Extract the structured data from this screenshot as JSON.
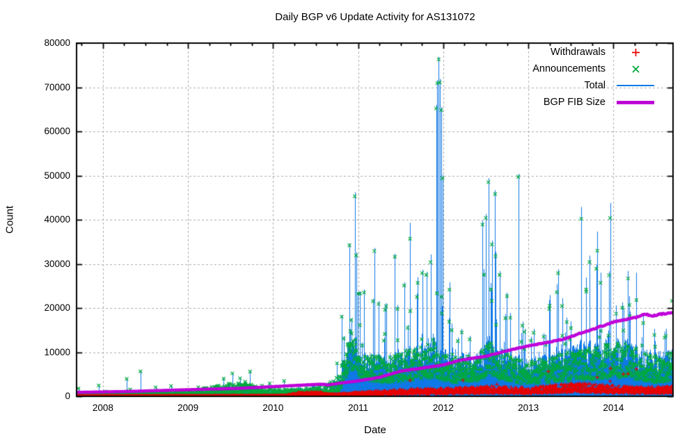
{
  "chart_data": {
    "type": "line",
    "title": "Daily BGP v6 Update Activity for AS131072",
    "xlabel": "Date",
    "ylabel": "Count",
    "xlim": [
      2007.69,
      2014.7
    ],
    "ylim": [
      0,
      80000
    ],
    "x_ticks": [
      2008,
      2009,
      2010,
      2011,
      2012,
      2013,
      2014
    ],
    "x_minor_step": 0.25,
    "y_ticks": [
      0,
      10000,
      20000,
      30000,
      40000,
      50000,
      60000,
      70000,
      80000
    ],
    "grid": true,
    "legend_position": "top-right-inside",
    "colors": {
      "grid": "#aaaaaa",
      "axis": "#000000",
      "background": "#ffffff",
      "text": "#000000"
    },
    "series": [
      {
        "name": "Withdrawals",
        "marker": "plus",
        "style": "points",
        "color": "#e60000",
        "band": [
          [
            2007.69,
            60,
            2.0
          ],
          [
            2009.3,
            80,
            2.0
          ],
          [
            2010.15,
            120,
            2.0
          ],
          [
            2010.3,
            520,
            1.8
          ],
          [
            2010.55,
            560,
            1.8
          ],
          [
            2010.7,
            290,
            1.8
          ],
          [
            2011.0,
            520,
            1.8
          ],
          [
            2011.5,
            900,
            1.8
          ],
          [
            2012.0,
            1050,
            1.8
          ],
          [
            2012.5,
            1300,
            1.8
          ],
          [
            2013.0,
            1100,
            1.8
          ],
          [
            2013.55,
            1700,
            1.8
          ],
          [
            2013.85,
            1500,
            1.8
          ],
          [
            2014.2,
            1250,
            1.8
          ],
          [
            2014.7,
            1250,
            1.8
          ]
        ]
      },
      {
        "name": "Announcements",
        "marker": "cross",
        "style": "points",
        "color": "#00a93e",
        "band": [
          [
            2007.69,
            350,
            2.2
          ],
          [
            2008.5,
            450,
            2.2
          ],
          [
            2009.0,
            520,
            2.2
          ],
          [
            2009.4,
            1100,
            2.4
          ],
          [
            2009.65,
            1500,
            2.4
          ],
          [
            2009.85,
            800,
            2.2
          ],
          [
            2010.2,
            700,
            2.2
          ],
          [
            2010.6,
            950,
            2.2
          ],
          [
            2010.78,
            2600,
            1.8
          ],
          [
            2010.88,
            8000,
            1.5
          ],
          [
            2010.96,
            9000,
            1.5
          ],
          [
            2011.05,
            6000,
            1.6
          ],
          [
            2011.3,
            5200,
            1.7
          ],
          [
            2011.6,
            6200,
            1.7
          ],
          [
            2011.9,
            7200,
            1.7
          ],
          [
            2012.1,
            5200,
            1.7
          ],
          [
            2012.35,
            5500,
            1.7
          ],
          [
            2012.55,
            7200,
            1.7
          ],
          [
            2012.75,
            5800,
            1.7
          ],
          [
            2012.95,
            4600,
            1.7
          ],
          [
            2013.2,
            5200,
            1.7
          ],
          [
            2013.5,
            6000,
            1.7
          ],
          [
            2013.8,
            6600,
            1.7
          ],
          [
            2014.05,
            7200,
            1.7
          ],
          [
            2014.3,
            6200,
            1.7
          ],
          [
            2014.55,
            5200,
            1.7
          ],
          [
            2014.7,
            6000,
            1.7
          ]
        ]
      },
      {
        "name": "Total",
        "marker": "line",
        "style": "impulses",
        "color": "#0e78e6"
      },
      {
        "name": "BGP FIB Size",
        "marker": "thick-line",
        "style": "line",
        "color": "#be00d8",
        "points": [
          [
            2007.69,
            900
          ],
          [
            2008.3,
            1100
          ],
          [
            2009.0,
            1500
          ],
          [
            2009.6,
            1800
          ],
          [
            2010.0,
            2200
          ],
          [
            2010.45,
            2650
          ],
          [
            2010.6,
            2750
          ],
          [
            2010.64,
            2550
          ],
          [
            2010.75,
            2900
          ],
          [
            2011.0,
            3500
          ],
          [
            2011.25,
            4300
          ],
          [
            2011.5,
            5700
          ],
          [
            2011.75,
            6400
          ],
          [
            2012.0,
            7100
          ],
          [
            2012.2,
            8200
          ],
          [
            2012.5,
            9100
          ],
          [
            2012.85,
            10800
          ],
          [
            2013.0,
            11400
          ],
          [
            2013.4,
            12900
          ],
          [
            2013.8,
            15500
          ],
          [
            2014.0,
            16800
          ],
          [
            2014.2,
            17600
          ],
          [
            2014.3,
            18000
          ],
          [
            2014.37,
            18700
          ],
          [
            2014.45,
            18200
          ],
          [
            2014.55,
            18600
          ],
          [
            2014.7,
            18950
          ]
        ]
      }
    ],
    "spikes": [
      [
        2007.95,
        2600,
        2450
      ],
      [
        2008.28,
        4100,
        3950
      ],
      [
        2008.44,
        5800,
        5650
      ],
      [
        2008.62,
        2200,
        2050
      ],
      [
        2008.8,
        2500,
        2350
      ],
      [
        2009.12,
        2200,
        2080
      ],
      [
        2009.42,
        4200,
        4000
      ],
      [
        2009.52,
        5400,
        5200
      ],
      [
        2009.61,
        4300,
        4100
      ],
      [
        2009.73,
        5800,
        5600
      ],
      [
        2009.96,
        3100,
        2950
      ],
      [
        2010.13,
        3700,
        3500
      ],
      [
        2010.46,
        2900,
        2600
      ],
      [
        2010.83,
        13600,
        13100
      ],
      [
        2010.9,
        11900,
        11400
      ],
      [
        2010.96,
        46200,
        45300
      ],
      [
        2010.975,
        32600,
        31900
      ],
      [
        2011.07,
        24200,
        23500
      ],
      [
        2011.19,
        33600,
        32900
      ],
      [
        2011.24,
        21600,
        20900
      ],
      [
        2011.33,
        21100,
        20400
      ],
      [
        2011.43,
        32300,
        31600
      ],
      [
        2011.54,
        25800,
        25100
      ],
      [
        2011.61,
        39300,
        35700
      ],
      [
        2011.69,
        23300,
        22500
      ],
      [
        2011.75,
        28700,
        27900
      ],
      [
        2011.8,
        28200,
        27500
      ],
      [
        2011.915,
        66000,
        65200
      ],
      [
        2011.93,
        71600,
        70900
      ],
      [
        2011.945,
        76900,
        76300
      ],
      [
        2011.96,
        71900,
        71100
      ],
      [
        2011.975,
        65500,
        64800
      ],
      [
        2011.99,
        50100,
        49400
      ],
      [
        2012.07,
        17700,
        16900
      ],
      [
        2012.17,
        13300,
        12500
      ],
      [
        2012.31,
        13700,
        12900
      ],
      [
        2012.46,
        39800,
        38900
      ],
      [
        2012.5,
        41300,
        40400
      ],
      [
        2012.53,
        49400,
        48500
      ],
      [
        2012.57,
        35300,
        34400
      ],
      [
        2012.61,
        46700,
        45800
      ],
      [
        2012.66,
        28400,
        27500
      ],
      [
        2012.73,
        18600,
        17700
      ],
      [
        2012.88,
        50400,
        49700
      ],
      [
        2012.93,
        16900,
        16000
      ],
      [
        2013.06,
        15300,
        14400
      ],
      [
        2013.18,
        14300,
        13500
      ],
      [
        2013.35,
        28800,
        27900
      ],
      [
        2013.49,
        13800,
        12900
      ],
      [
        2013.62,
        42900,
        40200
      ],
      [
        2013.68,
        26300,
        23700
      ],
      [
        2013.81,
        37300,
        33000
      ],
      [
        2013.96,
        43800,
        40400
      ],
      [
        2014.03,
        20600,
        18700
      ],
      [
        2014.17,
        28400,
        26700
      ],
      [
        2014.27,
        28000,
        21800
      ],
      [
        2014.35,
        18300,
        16600
      ],
      [
        2014.48,
        15300,
        13900
      ],
      [
        2014.6,
        14700,
        13300
      ],
      [
        2014.69,
        22100,
        21600
      ]
    ],
    "render": {
      "seed": 131072,
      "points_per_year": 365,
      "mid_spike": [
        {
          "until": 2010.7,
          "p": 0.012,
          "fmin": 2.0,
          "fmax": 4.0
        },
        {
          "until": 2015.0,
          "p": 0.05,
          "fmin": 1.8,
          "fmax": 3.2
        }
      ],
      "wd_spike": {
        "after": 2010.7,
        "p": 0.01,
        "fmin": 1.8,
        "fmax": 3.4
      }
    }
  }
}
